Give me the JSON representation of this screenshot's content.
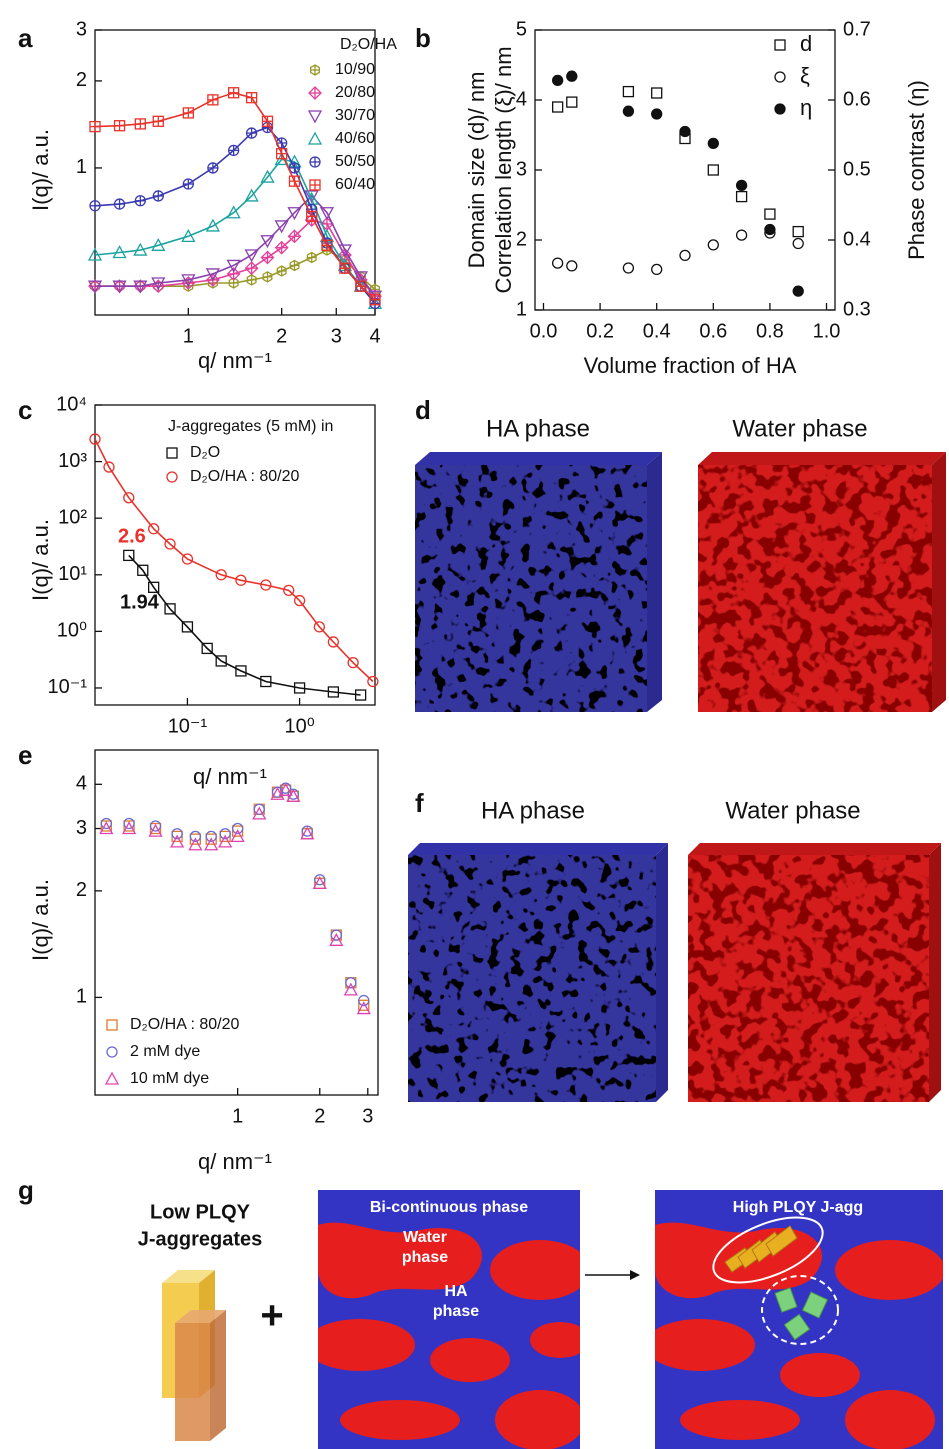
{
  "chart_data": [
    {
      "type": "line",
      "label": "a",
      "xlabel": "q/ nm⁻¹",
      "ylabel": "I(q)/ a.u.",
      "xscale": "log",
      "yscale": "log",
      "xlim": [
        0.5,
        4
      ],
      "ylim": [
        0.31,
        3
      ],
      "xticks": [
        1,
        2,
        3,
        4
      ],
      "yticks": [
        1,
        2,
        3
      ],
      "legend_title": "D₂O/HA",
      "legend": "upper right",
      "x": [
        0.5,
        0.6,
        0.7,
        0.8,
        1.0,
        1.2,
        1.4,
        1.6,
        1.8,
        2.0,
        2.2,
        2.5,
        2.8,
        3.2,
        3.6,
        4.0
      ],
      "series": [
        {
          "name": "10/90",
          "color": "#9a9a2a",
          "marker": "hexagon",
          "style": "line+markers",
          "values": [
            0.39,
            0.39,
            0.39,
            0.39,
            0.39,
            0.4,
            0.4,
            0.41,
            0.42,
            0.44,
            0.46,
            0.49,
            0.52,
            0.48,
            0.42,
            0.38
          ]
        },
        {
          "name": "20/80",
          "color": "#e0409a",
          "marker": "diamond",
          "style": "line+markers",
          "values": [
            0.39,
            0.39,
            0.39,
            0.39,
            0.4,
            0.41,
            0.43,
            0.45,
            0.49,
            0.53,
            0.58,
            0.66,
            0.64,
            0.5,
            0.41,
            0.36
          ]
        },
        {
          "name": "30/70",
          "color": "#8a3fae",
          "marker": "triangle-down",
          "style": "line+markers",
          "values": [
            0.39,
            0.39,
            0.39,
            0.4,
            0.41,
            0.43,
            0.46,
            0.5,
            0.56,
            0.63,
            0.7,
            0.8,
            0.7,
            0.52,
            0.42,
            0.36
          ]
        },
        {
          "name": "40/60",
          "color": "#1aa3a0",
          "marker": "triangle",
          "style": "line+markers",
          "values": [
            0.5,
            0.51,
            0.52,
            0.54,
            0.58,
            0.63,
            0.7,
            0.8,
            0.93,
            1.07,
            1.05,
            0.78,
            0.58,
            0.46,
            0.39,
            0.34
          ]
        },
        {
          "name": "50/50",
          "color": "#3a3ab0",
          "marker": "circle-plus",
          "style": "line+markers",
          "values": [
            0.74,
            0.75,
            0.77,
            0.8,
            0.88,
            1.0,
            1.15,
            1.32,
            1.38,
            1.22,
            1.0,
            0.72,
            0.55,
            0.45,
            0.39,
            0.34
          ]
        },
        {
          "name": "60/40",
          "color": "#e8322a",
          "marker": "square-plus",
          "style": "line+markers",
          "values": [
            1.39,
            1.4,
            1.42,
            1.45,
            1.55,
            1.72,
            1.82,
            1.75,
            1.45,
            1.12,
            0.9,
            0.68,
            0.54,
            0.45,
            0.39,
            0.35
          ]
        }
      ]
    },
    {
      "type": "scatter",
      "label": "b",
      "xlabel": "Volume fraction of HA",
      "ylabel": [
        "Domain size (d)/ nm",
        "Correlation length (ξ)/ nm"
      ],
      "y2label": "Phase contrast (η)",
      "xlim": [
        -0.03,
        1.03
      ],
      "ylim": [
        1,
        5
      ],
      "y2lim": [
        0.3,
        0.7
      ],
      "xticks": [
        {
          "value": 0,
          "label": "0.0"
        },
        0.2,
        0.4,
        0.6,
        0.8,
        {
          "value": 1,
          "label": "1.0"
        }
      ],
      "yticks": [
        1,
        2,
        3,
        4,
        5
      ],
      "y2ticks": [
        0.3,
        0.4,
        0.5,
        0.6,
        0.7
      ],
      "legend": "upper right",
      "series": [
        {
          "name": "d",
          "color": "#111111",
          "marker": "square",
          "filled": false,
          "x": [
            0.05,
            0.1,
            0.3,
            0.4,
            0.5,
            0.6,
            0.7,
            0.8,
            0.9
          ],
          "values": [
            3.9,
            3.97,
            4.12,
            4.1,
            3.45,
            3.0,
            2.62,
            2.37,
            2.12
          ]
        },
        {
          "name": "ξ",
          "color": "#111111",
          "marker": "circle",
          "filled": false,
          "x": [
            0.05,
            0.1,
            0.3,
            0.4,
            0.5,
            0.6,
            0.7,
            0.8,
            0.9
          ],
          "values": [
            1.67,
            1.63,
            1.6,
            1.58,
            1.78,
            1.93,
            2.07,
            2.1,
            1.95
          ]
        },
        {
          "name": "η",
          "color": "#111111",
          "marker": "circle",
          "filled": true,
          "axis": "y2",
          "x": [
            0.05,
            0.1,
            0.3,
            0.4,
            0.5,
            0.6,
            0.7,
            0.8,
            0.9
          ],
          "values": [
            0.628,
            0.634,
            0.584,
            0.58,
            0.555,
            0.538,
            0.478,
            0.415,
            0.327
          ]
        }
      ]
    },
    {
      "type": "line",
      "label": "c",
      "xlabel": "q/ nm⁻¹",
      "ylabel": "I(q)/ a.u.",
      "xscale": "log",
      "yscale": "log",
      "xlim": [
        0.015,
        4.7
      ],
      "ylim": [
        0.05,
        10000
      ],
      "xticks": [
        {
          "value": 0.1,
          "label": "10⁻¹"
        },
        {
          "value": 1,
          "label": "10⁰"
        }
      ],
      "yticks": [
        {
          "value": 0.1,
          "label": "10⁻¹"
        },
        {
          "value": 1,
          "label": "10⁰"
        },
        {
          "value": 10,
          "label": "10¹"
        },
        {
          "value": 100,
          "label": "10²"
        },
        {
          "value": 1000,
          "label": "10³"
        },
        {
          "value": 10000,
          "label": "10⁴"
        }
      ],
      "legend_title": "J-aggregates (5 mM) in",
      "legend": "upper right",
      "annotations": [
        {
          "text": "2.6",
          "color": "#e8322a"
        },
        {
          "text": "1.94",
          "color": "#111111"
        }
      ],
      "series": [
        {
          "name": "D₂O",
          "color": "#111111",
          "marker": "square",
          "style": "line+markers",
          "x": [
            0.03,
            0.04,
            0.05,
            0.07,
            0.1,
            0.15,
            0.2,
            0.3,
            0.5,
            1,
            2,
            3.5
          ],
          "values": [
            22,
            12,
            6,
            2.5,
            1.2,
            0.5,
            0.3,
            0.2,
            0.13,
            0.1,
            0.085,
            0.075
          ]
        },
        {
          "name": "D₂O/HA : 80/20",
          "color": "#e8322a",
          "marker": "circle",
          "style": "line+markers",
          "x": [
            0.015,
            0.02,
            0.03,
            0.05,
            0.07,
            0.1,
            0.2,
            0.3,
            0.5,
            0.8,
            1.0,
            1.5,
            2,
            3,
            4.5
          ],
          "values": [
            2500,
            800,
            230,
            65,
            35,
            19,
            10,
            8,
            6.6,
            5.3,
            3.5,
            1.2,
            0.65,
            0.28,
            0.13
          ]
        }
      ]
    },
    {
      "type": "scatter",
      "label": "e",
      "xlabel": "q/ nm⁻¹",
      "ylabel": "I(q)/ a.u.",
      "xscale": "log",
      "yscale": "log",
      "xlim": [
        0.3,
        3.27
      ],
      "ylim": [
        0.53,
        5.0
      ],
      "xticks": [
        1,
        2,
        3
      ],
      "yticks": [
        1,
        2,
        3,
        4
      ],
      "legend": "lower left",
      "x": [
        0.33,
        0.4,
        0.5,
        0.6,
        0.7,
        0.8,
        0.9,
        1.0,
        1.2,
        1.4,
        1.5,
        1.6,
        1.8,
        2.0,
        2.3,
        2.6,
        2.9
      ],
      "series": [
        {
          "name": "D₂O/HA : 80/20",
          "color": "#e07a2a",
          "marker": "square",
          "values": [
            3.05,
            3.05,
            3.0,
            2.85,
            2.8,
            2.8,
            2.85,
            2.95,
            3.4,
            3.8,
            3.85,
            3.7,
            2.9,
            2.1,
            1.5,
            1.1,
            0.95
          ]
        },
        {
          "name": "2 mM dye",
          "color": "#6a6ad0",
          "marker": "circle",
          "values": [
            3.1,
            3.1,
            3.05,
            2.9,
            2.85,
            2.85,
            2.9,
            3.0,
            3.4,
            3.8,
            3.9,
            3.75,
            2.95,
            2.15,
            1.5,
            1.1,
            0.98
          ]
        },
        {
          "name": "10 mM dye",
          "color": "#e040b0",
          "marker": "triangle",
          "values": [
            3.0,
            3.0,
            2.95,
            2.75,
            2.7,
            2.7,
            2.75,
            2.85,
            3.3,
            3.75,
            3.85,
            3.7,
            2.9,
            2.1,
            1.45,
            1.05,
            0.93
          ]
        }
      ]
    }
  ],
  "panel_d": {
    "label": "d",
    "titles": [
      "HA phase",
      "Water phase"
    ]
  },
  "panel_f": {
    "label": "f",
    "titles": [
      "HA phase",
      "Water phase"
    ]
  },
  "panel_g": {
    "label": "g",
    "left_title": [
      "Low PLQY",
      "J-aggregates"
    ],
    "plus": "+",
    "middle_title": "Bi-continuous phase",
    "water": [
      "Water",
      "phase"
    ],
    "ha": [
      "HA",
      "phase"
    ],
    "right_title": "High PLQY J-agg"
  }
}
